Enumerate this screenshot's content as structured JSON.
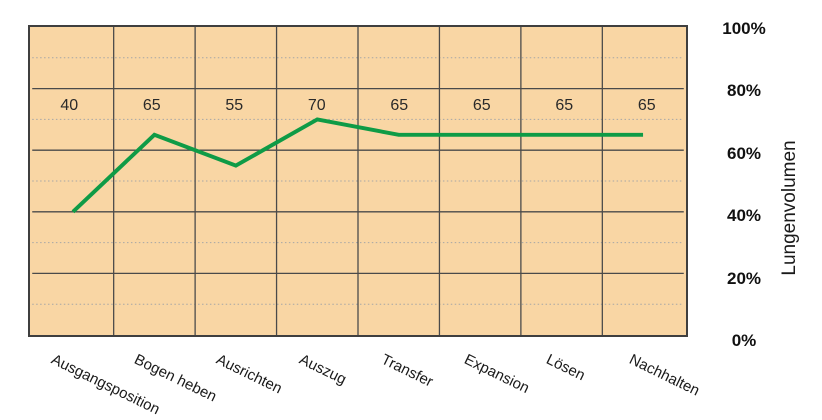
{
  "chart_data": {
    "type": "line",
    "title": "",
    "categories": [
      "Ausgangsposition",
      "Bogen heben",
      "Ausrichten",
      "Auszug",
      "Transfer",
      "Expansion",
      "Lösen",
      "Nachhalten"
    ],
    "values": [
      40,
      65,
      55,
      70,
      65,
      65,
      65,
      65
    ],
    "value_labels": [
      "40",
      "65",
      "55",
      "70",
      "65",
      "65",
      "65",
      "65"
    ],
    "xlabel": "",
    "ylabel": "Lungenvolumen",
    "ylim": [
      0,
      100
    ],
    "y_ticks": [
      {
        "label": "100%",
        "value": 100
      },
      {
        "label": "80%",
        "value": 80
      },
      {
        "label": "60%",
        "value": 60
      },
      {
        "label": "40%",
        "value": 40
      },
      {
        "label": "20%",
        "value": 20
      },
      {
        "label": "0%",
        "value": 0
      }
    ],
    "grid": {
      "major_step": 20,
      "minor_step": 10,
      "vertical_lines": true
    },
    "legend_position": "none",
    "colors": {
      "line": "#0f9b46",
      "plot_background": "#f9d6a4",
      "grid_major": "#4a4a4a",
      "grid_minor": "#a6a6a6",
      "border": "#3f3f3f",
      "text": "#1a1a1a"
    }
  }
}
